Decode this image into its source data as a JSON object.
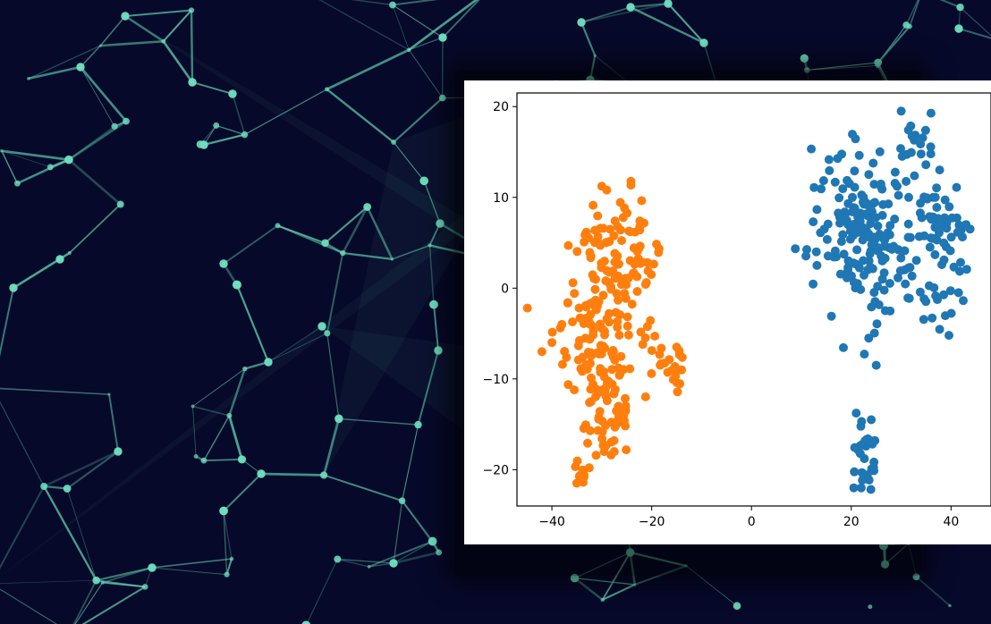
{
  "chart_data": {
    "type": "scatter",
    "title": "",
    "xlabel": "",
    "ylabel": "",
    "xlim": [
      -47,
      48
    ],
    "ylim": [
      -24,
      21.5
    ],
    "xticks": [
      -40,
      -20,
      0,
      20,
      40
    ],
    "yticks": [
      20,
      10,
      0,
      -10,
      -20
    ],
    "xtick_labels": [
      "−40",
      "−20",
      "0",
      "20",
      "40"
    ],
    "ytick_labels": [
      "20",
      "10",
      "0",
      "−10",
      "−20"
    ],
    "grid": false,
    "series": [
      {
        "color": "#1f77b4",
        "clusters": [
          {
            "cx": 22,
            "cy": 8,
            "sx": 5,
            "sy": 4,
            "n": 130
          },
          {
            "cx": 38,
            "cy": 6,
            "sx": 3,
            "sy": 3,
            "n": 55
          },
          {
            "cx": 26,
            "cy": 2,
            "sx": 4,
            "sy": 3,
            "n": 50
          },
          {
            "cx": 33,
            "cy": 16,
            "sx": 2.5,
            "sy": 2,
            "n": 20
          },
          {
            "cx": 37,
            "cy": -2,
            "sx": 2,
            "sy": 1.5,
            "n": 14
          },
          {
            "cx": 22.5,
            "cy": -18.5,
            "sx": 1.3,
            "sy": 2.2,
            "n": 30
          }
        ],
        "points": [
          [
            30,
            19.5
          ],
          [
            23.5,
            -5.5
          ],
          [
            25,
            -8.5
          ],
          [
            24,
            -14.5
          ],
          [
            20.5,
            -22
          ],
          [
            22,
            -22
          ],
          [
            13,
            4
          ],
          [
            43,
            7
          ],
          [
            41.5,
            -0.5
          ]
        ]
      },
      {
        "color": "#ff7f0e",
        "clusters": [
          {
            "cx": -26,
            "cy": 3,
            "sx": 3.5,
            "sy": 3.5,
            "n": 80
          },
          {
            "cx": -31,
            "cy": -5,
            "sx": 4,
            "sy": 4,
            "n": 110
          },
          {
            "cx": -29,
            "cy": -14,
            "sx": 2.5,
            "sy": 2,
            "n": 45
          },
          {
            "cx": -17,
            "cy": -8,
            "sx": 2,
            "sy": 2,
            "n": 22
          },
          {
            "cx": -33,
            "cy": 7,
            "sx": 1.5,
            "sy": 1.5,
            "n": 10
          },
          {
            "cx": -34,
            "cy": -20.5,
            "sx": 0.8,
            "sy": 0.7,
            "n": 10
          }
        ],
        "points": [
          [
            -29,
            10.8
          ],
          [
            -42,
            -7
          ],
          [
            -40,
            -6
          ],
          [
            -38,
            -4
          ],
          [
            -14,
            -9
          ],
          [
            -15,
            -6.5
          ],
          [
            -29.5,
            -18
          ],
          [
            -27.5,
            -18
          ]
        ]
      }
    ]
  }
}
